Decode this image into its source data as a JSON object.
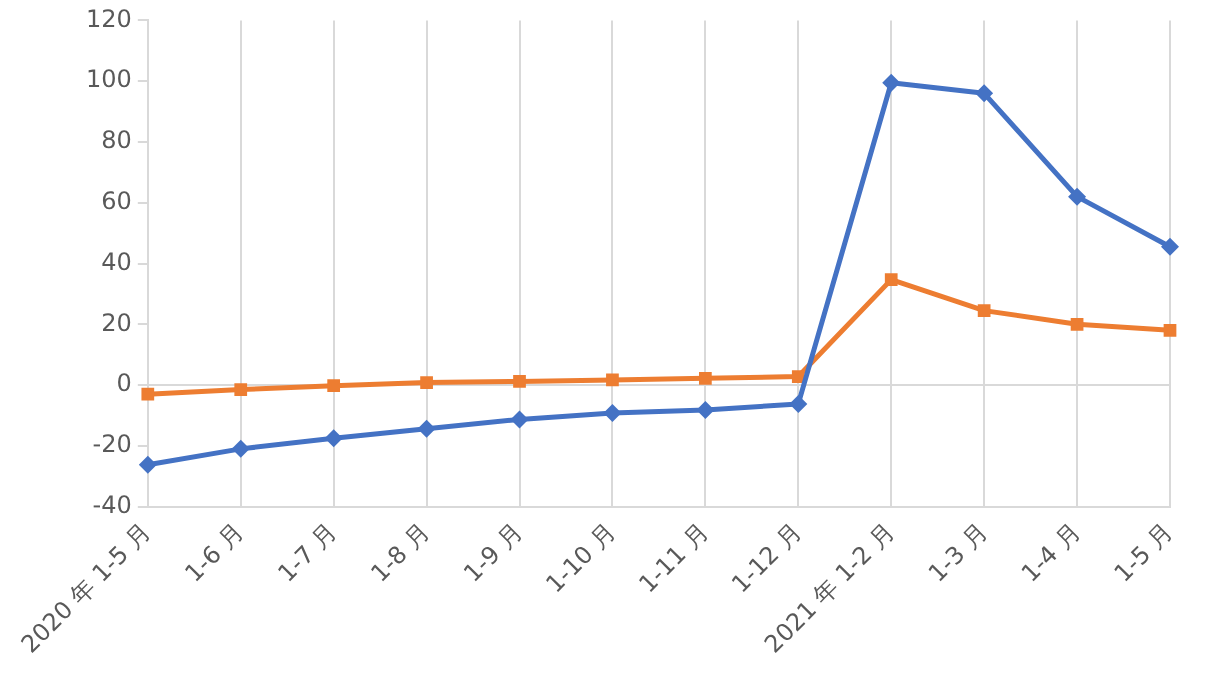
{
  "chart_data": {
    "type": "line",
    "categories": [
      "2020 年 1-5 月",
      "1-6 月",
      "1-7 月",
      "1-8 月",
      "1-9 月",
      "1-10 月",
      "1-11 月",
      "1-12 月",
      "2021 年 1-2 月",
      "1-3 月",
      "1-4 月",
      "1-5 月"
    ],
    "series": [
      {
        "color": "#4472c4",
        "marker": "diamond",
        "values": [
          -26.2,
          -21,
          -17.5,
          -14.4,
          -11.3,
          -9.2,
          -8.2,
          -6.2,
          99.5,
          96,
          62,
          45.5
        ]
      },
      {
        "color": "#ed7d31",
        "marker": "square",
        "values": [
          -3,
          -1.5,
          -0.2,
          0.8,
          1.2,
          1.7,
          2.2,
          2.8,
          34.7,
          24.5,
          20,
          18
        ]
      }
    ],
    "ref_lines": [
      {
        "axis": "y",
        "value": 0,
        "color": "#d9d9d9"
      }
    ],
    "ylim": [
      -40,
      120
    ],
    "yticks": [
      -40,
      -20,
      0,
      20,
      40,
      60,
      80,
      100,
      120
    ],
    "grid": "x",
    "legend": false
  }
}
